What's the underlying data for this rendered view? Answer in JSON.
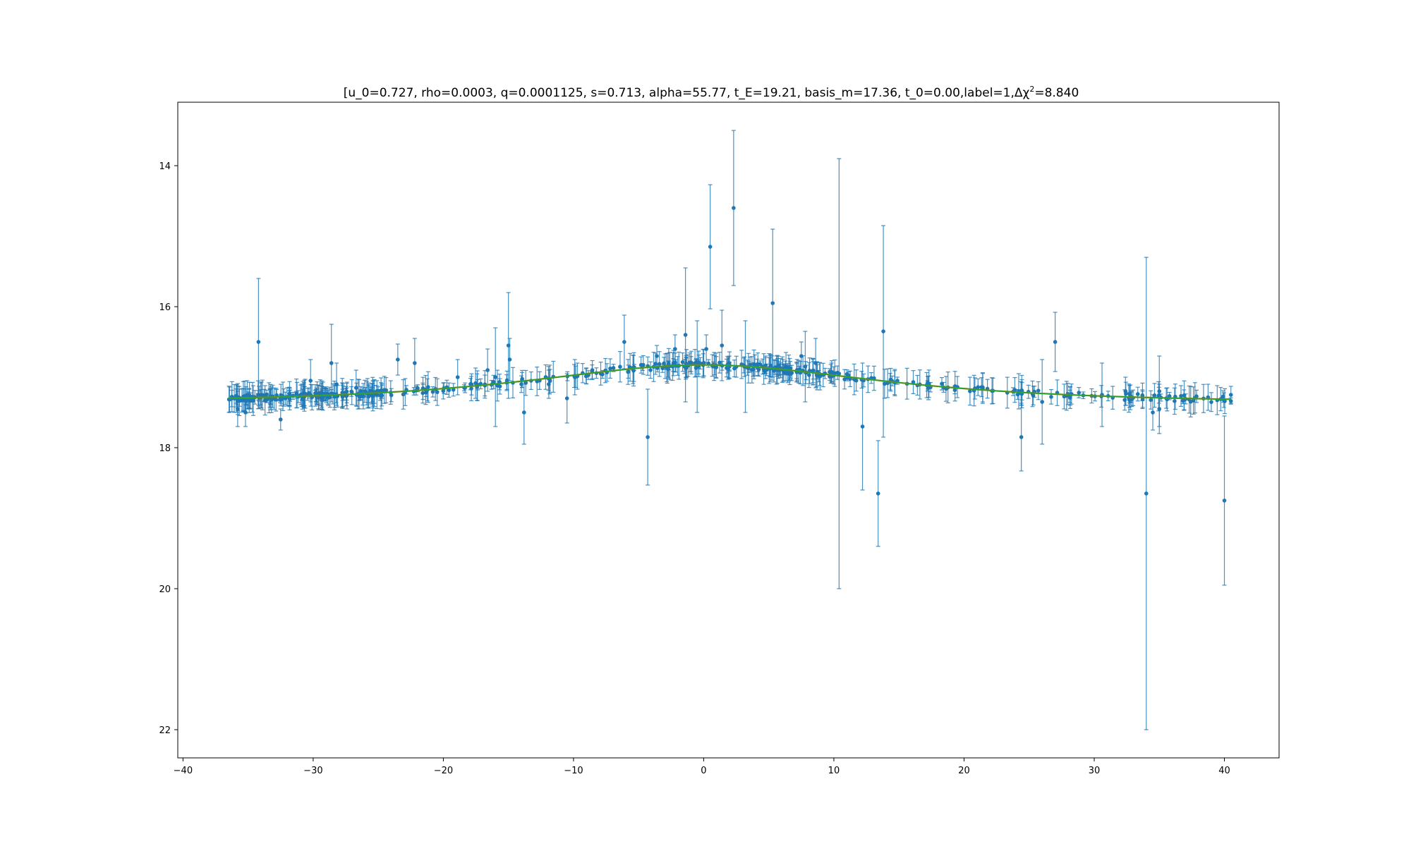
{
  "chart_data": {
    "type": "scatter",
    "title": "[u_0=0.727, rho=0.0003, q=0.0001125, s=0.713, alpha=55.77, t_E=19.21, basis_m=17.36, t_0=0.00,label=1,Δχ²=8.840",
    "title_parts": {
      "main": "[u_0=0.727, rho=0.0003, q=0.0001125, s=0.713, alpha=55.77, t_E=19.21, basis_m=17.36, t_0=0.00,label=1,Δχ",
      "sup": "2",
      "tail": "=8.840"
    },
    "xlabel": "",
    "ylabel": "",
    "xlim": [
      -40.4,
      44.2
    ],
    "ylim": [
      22.4,
      13.1
    ],
    "y_inverted": true,
    "xticks": [
      -40,
      -30,
      -20,
      -10,
      0,
      10,
      20,
      30,
      40
    ],
    "yticks": [
      14,
      16,
      18,
      20,
      22
    ],
    "grid": false,
    "colors": {
      "points": "#1f77b4",
      "errorbars": "#1f77b4",
      "model": "#2ca02c",
      "model_overlay": "#ff7f0e"
    },
    "model": {
      "t0": 0.0,
      "tE": 19.21,
      "u0": 0.727,
      "basis_m": 17.36,
      "x_range": [
        -36.5,
        40.5
      ],
      "samples": 309
    },
    "baseline_points": {
      "count": 520,
      "x_range": [
        -36.5,
        40.5
      ],
      "scatter": 0.045,
      "err_range": [
        0.04,
        0.22
      ]
    },
    "highlighted_points": [
      {
        "x": -34.2,
        "y": 16.5,
        "err": 0.9
      },
      {
        "x": -35.8,
        "y": 17.45,
        "err": 0.25
      },
      {
        "x": -35.2,
        "y": 17.5,
        "err": 0.2
      },
      {
        "x": -32.5,
        "y": 17.6,
        "err": 0.15
      },
      {
        "x": -30.2,
        "y": 17.05,
        "err": 0.3
      },
      {
        "x": -28.6,
        "y": 16.8,
        "err": 0.55
      },
      {
        "x": -28.2,
        "y": 17.1,
        "err": 0.3
      },
      {
        "x": -26.7,
        "y": 17.15,
        "err": 0.25
      },
      {
        "x": -23.5,
        "y": 16.75,
        "err": 0.22
      },
      {
        "x": -22.2,
        "y": 16.8,
        "err": 0.35
      },
      {
        "x": -18.9,
        "y": 17.0,
        "err": 0.25
      },
      {
        "x": -16.6,
        "y": 16.9,
        "err": 0.3
      },
      {
        "x": -16.0,
        "y": 17.0,
        "err": 0.7
      },
      {
        "x": -15.0,
        "y": 16.55,
        "err": 0.75
      },
      {
        "x": -14.9,
        "y": 16.75,
        "err": 0.3
      },
      {
        "x": -13.8,
        "y": 17.5,
        "err": 0.45
      },
      {
        "x": -11.9,
        "y": 17.1,
        "err": 0.2
      },
      {
        "x": -10.5,
        "y": 17.3,
        "err": 0.35
      },
      {
        "x": -9.9,
        "y": 17.0,
        "err": 0.25
      },
      {
        "x": -6.1,
        "y": 16.5,
        "err": 0.38
      },
      {
        "x": -4.3,
        "y": 17.85,
        "err": 0.68
      },
      {
        "x": -3.6,
        "y": 16.7,
        "err": 0.15
      },
      {
        "x": -2.2,
        "y": 16.6,
        "err": 0.2
      },
      {
        "x": -1.4,
        "y": 16.4,
        "err": 0.95
      },
      {
        "x": -0.5,
        "y": 16.85,
        "err": 0.65
      },
      {
        "x": 0.2,
        "y": 16.6,
        "err": 0.2
      },
      {
        "x": 0.5,
        "y": 15.15,
        "err": 0.88
      },
      {
        "x": 1.4,
        "y": 16.55,
        "err": 0.5
      },
      {
        "x": 2.3,
        "y": 14.6,
        "err": 1.1
      },
      {
        "x": 3.2,
        "y": 16.85,
        "err": 0.65
      },
      {
        "x": 5.3,
        "y": 15.95,
        "err": 1.05
      },
      {
        "x": 5.6,
        "y": 16.9,
        "err": 0.2
      },
      {
        "x": 7.5,
        "y": 16.7,
        "err": 0.2
      },
      {
        "x": 7.8,
        "y": 16.85,
        "err": 0.5
      },
      {
        "x": 8.6,
        "y": 16.8,
        "err": 0.35
      },
      {
        "x": 10.4,
        "y": 16.95,
        "err": 3.05
      },
      {
        "x": 12.2,
        "y": 17.7,
        "err": 0.9
      },
      {
        "x": 13.4,
        "y": 18.65,
        "err": 0.75
      },
      {
        "x": 13.8,
        "y": 16.35,
        "err": 1.5
      },
      {
        "x": 24.2,
        "y": 17.2,
        "err": 0.25
      },
      {
        "x": 24.4,
        "y": 17.85,
        "err": 0.48
      },
      {
        "x": 26.0,
        "y": 17.35,
        "err": 0.6
      },
      {
        "x": 27.0,
        "y": 16.5,
        "err": 0.42
      },
      {
        "x": 30.6,
        "y": 17.25,
        "err": 0.45
      },
      {
        "x": 32.4,
        "y": 17.2,
        "err": 0.2
      },
      {
        "x": 34.0,
        "y": 18.65,
        "err": 3.35
      },
      {
        "x": 34.5,
        "y": 17.5,
        "err": 0.25
      },
      {
        "x": 35.0,
        "y": 17.45,
        "err": 0.35
      },
      {
        "x": 35.0,
        "y": 17.2,
        "err": 0.5
      },
      {
        "x": 40.0,
        "y": 18.75,
        "err": 1.2
      },
      {
        "x": 40.5,
        "y": 17.25,
        "err": 0.12
      }
    ]
  }
}
